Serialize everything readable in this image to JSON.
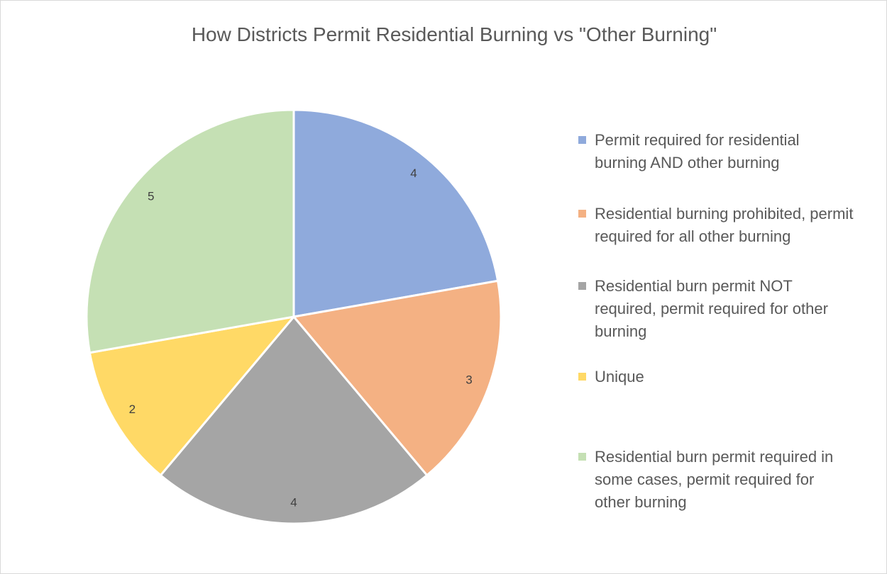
{
  "chart_data": {
    "type": "pie",
    "title": "How Districts Permit Residential Burning vs \"Other Burning\"",
    "categories": [
      "Permit required for residential burning AND other burning",
      "Residential burning prohibited, permit required for all other burning",
      "Residential burn permit NOT required, permit required for other burning",
      "Unique",
      "Residential burn permit required in some cases, permit required for other burning"
    ],
    "values": [
      4,
      3,
      4,
      2,
      5
    ],
    "colors": [
      "#8faadc",
      "#f4b183",
      "#a5a5a5",
      "#ffd966",
      "#c5e0b4"
    ],
    "legend": "right"
  }
}
